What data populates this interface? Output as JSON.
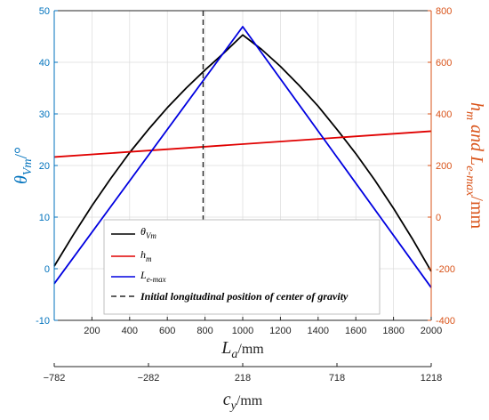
{
  "chart_data": {
    "type": "line",
    "x_axis": {
      "base": "L",
      "subscript": "a",
      "unit": "/mm",
      "xlim": [
        0,
        2000
      ],
      "ticks": [
        200,
        400,
        600,
        800,
        1000,
        1200,
        1400,
        1600,
        1800,
        2000
      ]
    },
    "secondary_x_axis": {
      "base": "c",
      "subscript": "y",
      "unit": "/mm",
      "ticks": [
        -782,
        -282,
        218,
        718,
        1218
      ]
    },
    "y_left": {
      "base": "θ",
      "subscript": "Vm",
      "unit": "/°",
      "color": "#0072BD",
      "ylim": [
        -10,
        50
      ],
      "ticks": [
        -10,
        0,
        10,
        20,
        30,
        40,
        50
      ]
    },
    "y_right": {
      "label_h": "h",
      "sub_h": "m",
      "label_and": " and ",
      "label_L": "L",
      "sub_L": "e-max",
      "unit": "/mm",
      "color": "#D95319",
      "ylim": [
        -400,
        800
      ],
      "ticks": [
        -400,
        -200,
        0,
        200,
        400,
        600,
        800
      ]
    },
    "series": [
      {
        "name": "θVm",
        "legend_base": "θ",
        "legend_sub": "Vm",
        "axis": "left",
        "color": "#000000",
        "x": [
          0,
          100,
          200,
          300,
          400,
          500,
          600,
          700,
          800,
          900,
          1000,
          1100,
          1200,
          1300,
          1400,
          1500,
          1600,
          1700,
          1800,
          1900,
          2000
        ],
        "y": [
          0.5,
          6.5,
          12.2,
          17.5,
          22.5,
          27.0,
          31.2,
          35.0,
          38.5,
          41.8,
          45.3,
          42.5,
          39.2,
          35.5,
          31.5,
          27.0,
          22.3,
          17.2,
          11.7,
          5.8,
          -0.5
        ]
      },
      {
        "name": "hm",
        "legend_base": "h",
        "legend_sub": "m",
        "axis": "right",
        "color": "#E00000",
        "x": [
          0,
          2000
        ],
        "y": [
          233,
          333
        ]
      },
      {
        "name": "Le-max",
        "legend_base": "L",
        "legend_sub": "e-max",
        "axis": "right",
        "color": "#0000E0",
        "x": [
          0,
          1000,
          2000
        ],
        "y": [
          -258,
          738,
          -273
        ]
      }
    ],
    "vline": {
      "x": 790,
      "y_from": 0,
      "y_to": 50,
      "color": "#262626",
      "label": "Initial longitudinal position of center of gravity"
    },
    "legend_position": "bottom-left",
    "grid": true
  }
}
